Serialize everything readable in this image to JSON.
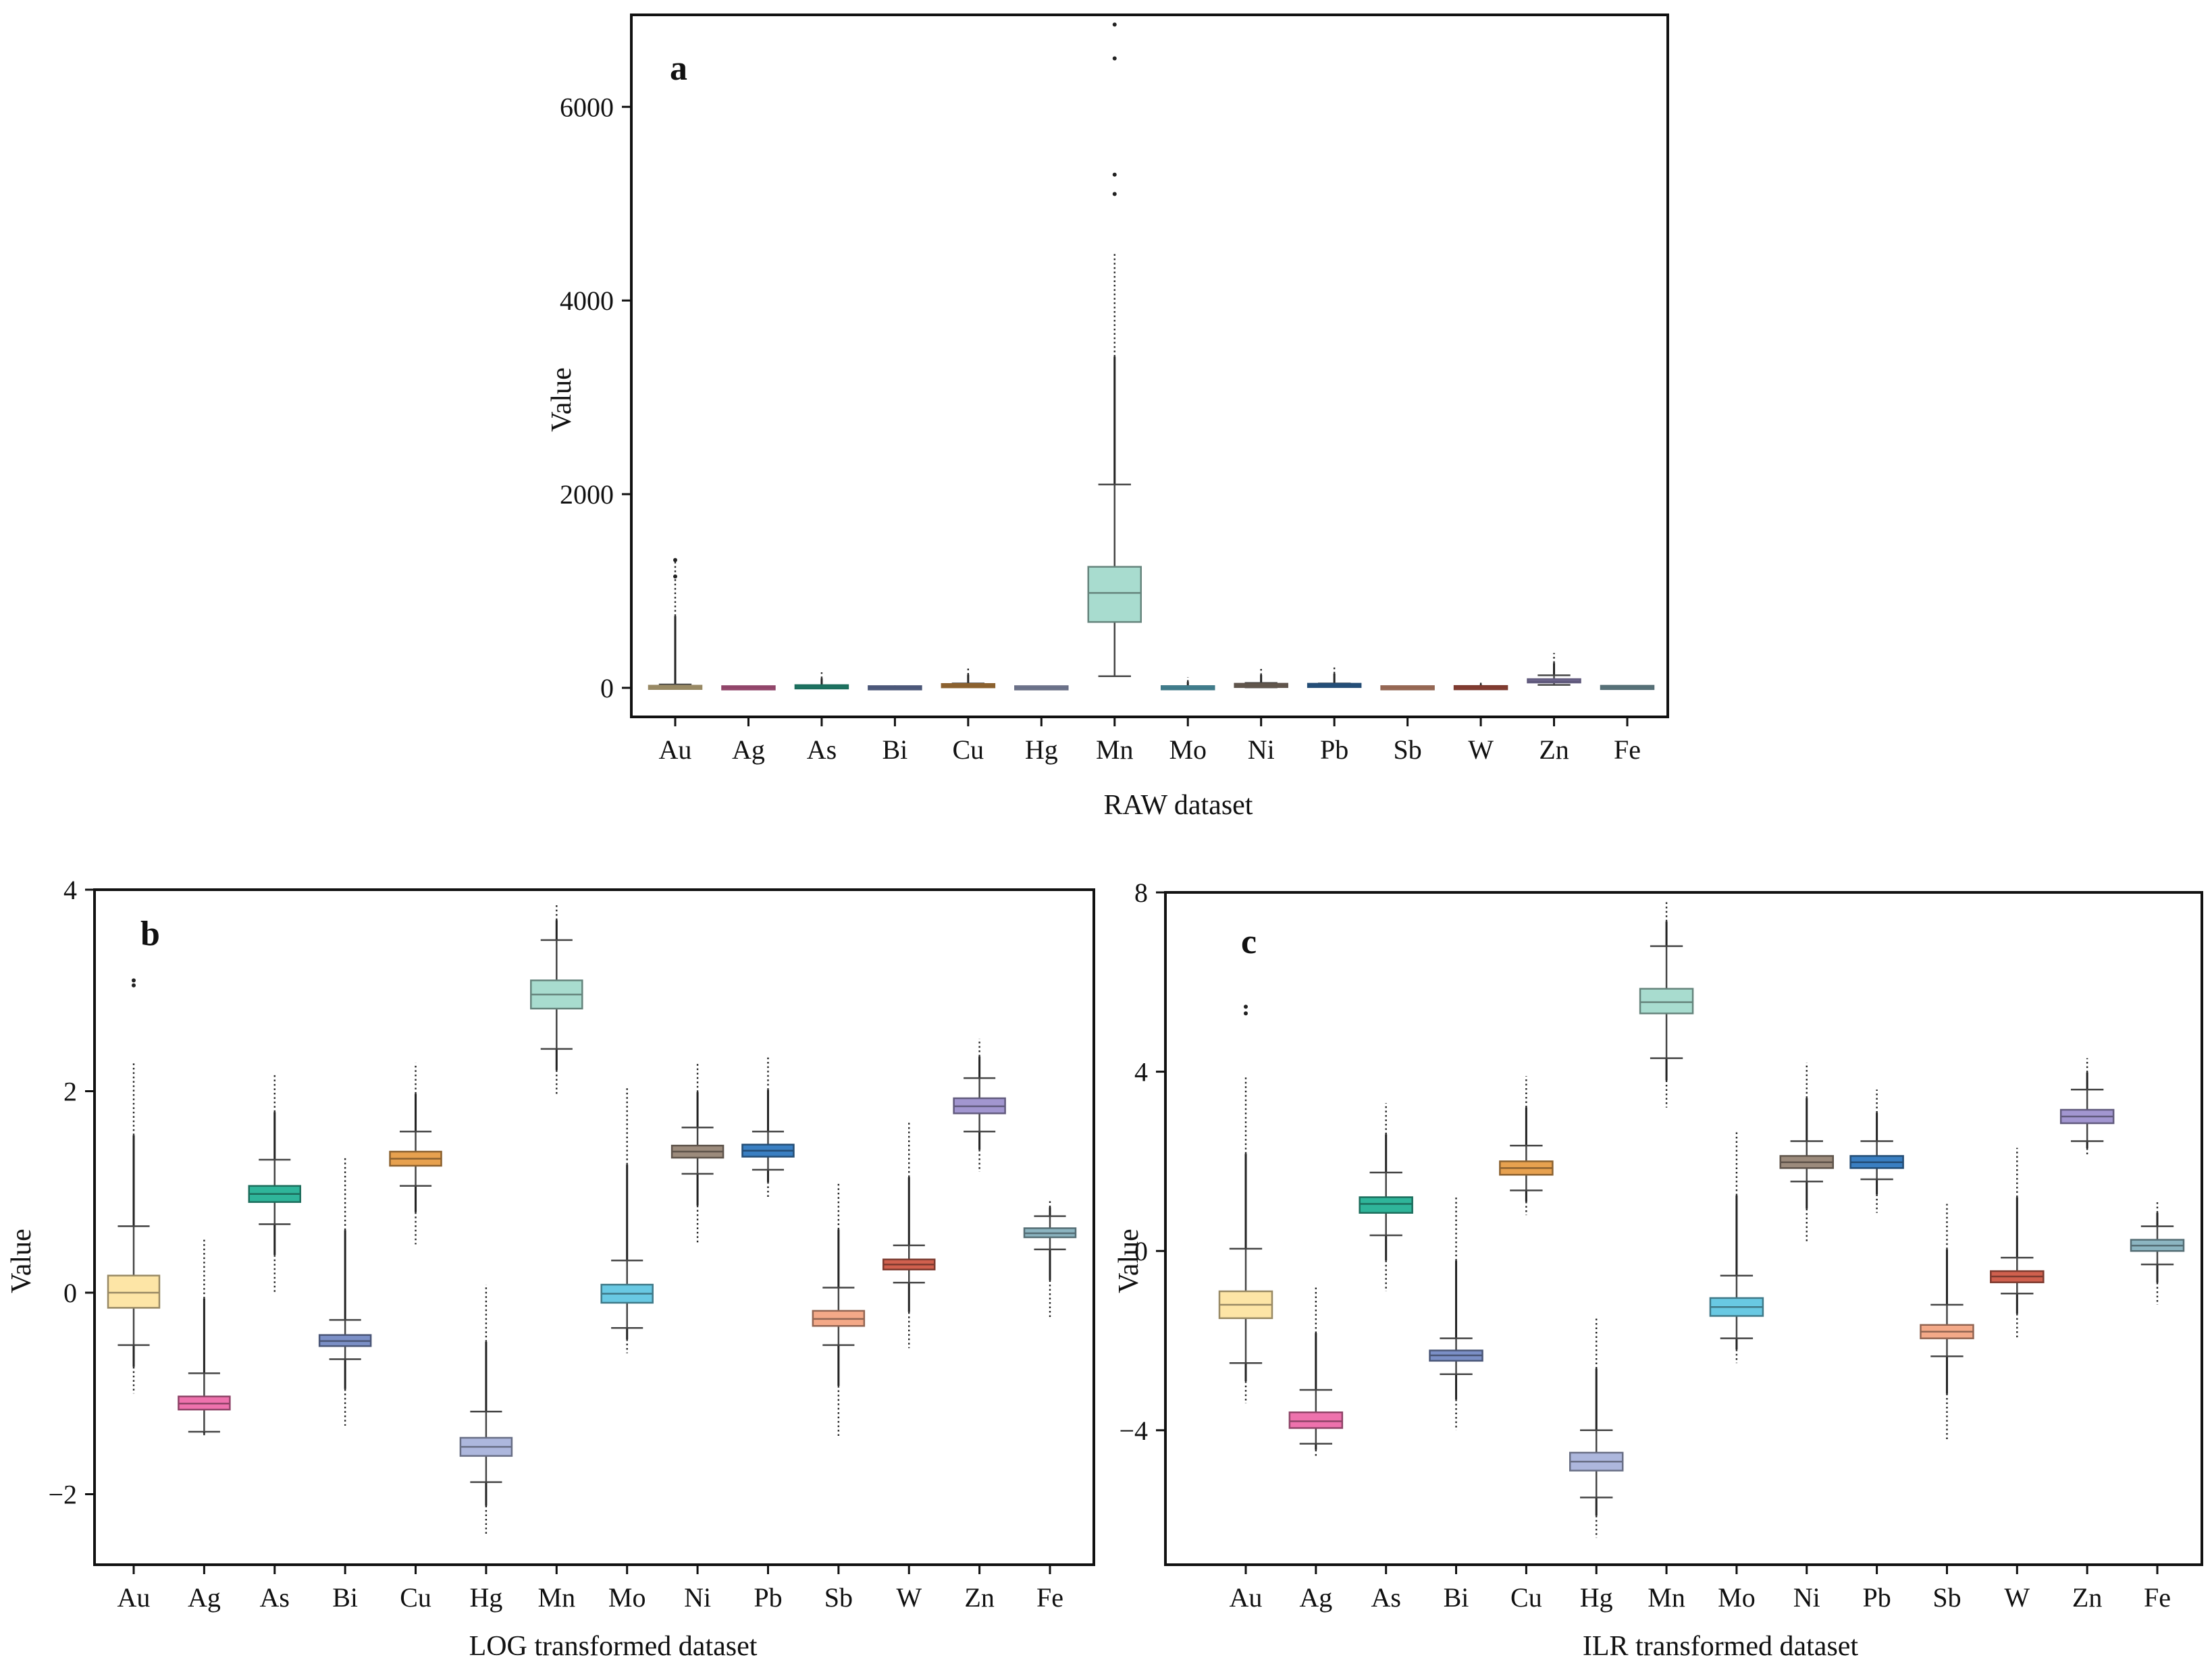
{
  "chart_data": [
    {
      "panel_label": "a",
      "type": "boxplot",
      "xlabel": "RAW dataset",
      "ylabel": "Value",
      "ylim": [
        -300,
        6950
      ],
      "yticks": [
        0,
        2000,
        4000,
        6000
      ],
      "categories": [
        "Au",
        "Ag",
        "As",
        "Bi",
        "Cu",
        "Hg",
        "Mn",
        "Mo",
        "Ni",
        "Pb",
        "Sb",
        "W",
        "Zn",
        "Fe"
      ],
      "boxes": [
        {
          "q1": 2,
          "median": 5,
          "q3": 8,
          "whislo": 0,
          "whishi": 35,
          "outlier_max": 1320,
          "extra_outliers": [
            1150,
            1320
          ]
        },
        {
          "q1": 0.1,
          "median": 0.2,
          "q3": 0.3,
          "whislo": 0,
          "whishi": 1,
          "outlier_max": 5,
          "extra_outliers": []
        },
        {
          "q1": 8,
          "median": 10,
          "q3": 13,
          "whislo": 2,
          "whishi": 25,
          "outlier_max": 160,
          "extra_outliers": []
        },
        {
          "q1": 0.3,
          "median": 0.4,
          "q3": 0.5,
          "whislo": 0.1,
          "whishi": 1,
          "outlier_max": 25,
          "extra_outliers": []
        },
        {
          "q1": 18,
          "median": 22,
          "q3": 27,
          "whislo": 5,
          "whishi": 45,
          "outlier_max": 210,
          "extra_outliers": []
        },
        {
          "q1": 0.02,
          "median": 0.03,
          "q3": 0.04,
          "whislo": 0.01,
          "whishi": 0.06,
          "outlier_max": 1,
          "extra_outliers": []
        },
        {
          "q1": 680,
          "median": 980,
          "q3": 1250,
          "whislo": 120,
          "whishi": 2100,
          "outlier_max": 4500,
          "extra_outliers": [
            5100,
            5300,
            6500,
            6850
          ]
        },
        {
          "q1": 0.6,
          "median": 0.9,
          "q3": 1.3,
          "whislo": 0.2,
          "whishi": 2.5,
          "outlier_max": 110,
          "extra_outliers": []
        },
        {
          "q1": 18,
          "median": 25,
          "q3": 32,
          "whislo": 5,
          "whishi": 50,
          "outlier_max": 200,
          "extra_outliers": []
        },
        {
          "q1": 20,
          "median": 25,
          "q3": 30,
          "whislo": 10,
          "whishi": 45,
          "outlier_max": 230,
          "extra_outliers": []
        },
        {
          "q1": 0.4,
          "median": 0.6,
          "q3": 0.8,
          "whislo": 0.1,
          "whishi": 1.5,
          "outlier_max": 15,
          "extra_outliers": []
        },
        {
          "q1": 1.5,
          "median": 2,
          "q3": 2.5,
          "whislo": 0.5,
          "whishi": 4,
          "outlier_max": 60,
          "extra_outliers": []
        },
        {
          "q1": 60,
          "median": 70,
          "q3": 85,
          "whislo": 30,
          "whishi": 130,
          "outlier_max": 360,
          "extra_outliers": []
        },
        {
          "q1": 3.5,
          "median": 4,
          "q3": 4.5,
          "whislo": 2,
          "whishi": 6,
          "outlier_max": 9,
          "extra_outliers": []
        }
      ],
      "colors": [
        "#fde5a6",
        "#ee72ad",
        "#2fb59a",
        "#7b8fc6",
        "#e7a14f",
        "#adb7dd",
        "#a8dccf",
        "#69c9e3",
        "#9c8b7c",
        "#3a7fc2",
        "#f4a988",
        "#d0604e",
        "#a296d0",
        "#8cb5c1"
      ],
      "colors_note_raw": "Only Mn box visible in panel a (#a8dccf); others collapsed near zero"
    },
    {
      "panel_label": "b",
      "type": "boxplot",
      "xlabel": "LOG transformed dataset",
      "ylabel": "Value",
      "ylim": [
        -2.7,
        4.0
      ],
      "yticks": [
        -2,
        0,
        2,
        4
      ],
      "categories": [
        "Au",
        "Ag",
        "As",
        "Bi",
        "Cu",
        "Hg",
        "Mn",
        "Mo",
        "Ni",
        "Pb",
        "Sb",
        "W",
        "Zn",
        "Fe"
      ],
      "boxes": [
        {
          "q1": -0.15,
          "median": 0.0,
          "q3": 0.17,
          "whislo": -0.52,
          "whishi": 0.66,
          "outlier_min": -1.0,
          "outlier_max": 2.3,
          "extra_outliers": [
            3.05,
            3.1
          ]
        },
        {
          "q1": -1.16,
          "median": -1.1,
          "q3": -1.03,
          "whislo": -1.38,
          "whishi": -0.8,
          "outlier_min": -1.42,
          "outlier_max": 0.55,
          "extra_outliers": []
        },
        {
          "q1": 0.9,
          "median": 0.98,
          "q3": 1.06,
          "whislo": 0.68,
          "whishi": 1.32,
          "outlier_min": 0.0,
          "outlier_max": 2.18,
          "extra_outliers": []
        },
        {
          "q1": -0.53,
          "median": -0.48,
          "q3": -0.42,
          "whislo": -0.66,
          "whishi": -0.27,
          "outlier_min": -1.32,
          "outlier_max": 1.35,
          "extra_outliers": []
        },
        {
          "q1": 1.26,
          "median": 1.33,
          "q3": 1.4,
          "whislo": 1.06,
          "whishi": 1.6,
          "outlier_min": 0.48,
          "outlier_max": 2.28,
          "extra_outliers": []
        },
        {
          "q1": -1.62,
          "median": -1.53,
          "q3": -1.44,
          "whislo": -1.88,
          "whishi": -1.18,
          "outlier_min": -2.4,
          "outlier_max": 0.08,
          "extra_outliers": []
        },
        {
          "q1": 2.82,
          "median": 2.96,
          "q3": 3.1,
          "whislo": 2.42,
          "whishi": 3.5,
          "outlier_min": 1.95,
          "outlier_max": 3.86,
          "extra_outliers": []
        },
        {
          "q1": -0.1,
          "median": -0.01,
          "q3": 0.08,
          "whislo": -0.35,
          "whishi": 0.32,
          "outlier_min": -0.6,
          "outlier_max": 2.05,
          "extra_outliers": []
        },
        {
          "q1": 1.34,
          "median": 1.4,
          "q3": 1.46,
          "whislo": 1.18,
          "whishi": 1.64,
          "outlier_min": 0.48,
          "outlier_max": 2.28,
          "extra_outliers": []
        },
        {
          "q1": 1.35,
          "median": 1.41,
          "q3": 1.47,
          "whislo": 1.22,
          "whishi": 1.6,
          "outlier_min": 0.95,
          "outlier_max": 2.35,
          "extra_outliers": []
        },
        {
          "q1": -0.33,
          "median": -0.26,
          "q3": -0.18,
          "whislo": -0.52,
          "whishi": 0.05,
          "outlier_min": -1.42,
          "outlier_max": 1.1,
          "extra_outliers": []
        },
        {
          "q1": 0.23,
          "median": 0.28,
          "q3": 0.33,
          "whislo": 0.1,
          "whishi": 0.47,
          "outlier_min": -0.55,
          "outlier_max": 1.7,
          "extra_outliers": []
        },
        {
          "q1": 1.78,
          "median": 1.85,
          "q3": 1.93,
          "whislo": 1.6,
          "whishi": 2.13,
          "outlier_min": 1.2,
          "outlier_max": 2.52,
          "extra_outliers": []
        },
        {
          "q1": 0.55,
          "median": 0.59,
          "q3": 0.64,
          "whislo": 0.43,
          "whishi": 0.76,
          "outlier_min": -0.25,
          "outlier_max": 0.92,
          "extra_outliers": []
        }
      ],
      "colors": [
        "#fde5a6",
        "#ee72ad",
        "#2fb59a",
        "#7b8fc6",
        "#e7a14f",
        "#adb7dd",
        "#a8dccf",
        "#69c9e3",
        "#9c8b7c",
        "#3a7fc2",
        "#f4a988",
        "#d0604e",
        "#a296d0",
        "#8cb5c1"
      ]
    },
    {
      "panel_label": "c",
      "type": "boxplot",
      "xlabel": "ILR transformed dataset",
      "ylabel": "Value",
      "ylim": [
        -7.0,
        8.0
      ],
      "yticks": [
        -4,
        0,
        4,
        8
      ],
      "categories": [
        "Au",
        "Ag",
        "As",
        "Bi",
        "Cu",
        "Hg",
        "Mn",
        "Mo",
        "Ni",
        "Pb",
        "Sb",
        "W",
        "Zn",
        "Fe"
      ],
      "boxes": [
        {
          "q1": -1.5,
          "median": -1.2,
          "q3": -0.9,
          "whislo": -2.5,
          "whishi": 0.05,
          "outlier_min": -3.4,
          "outlier_max": 3.9,
          "extra_outliers": [
            5.3,
            5.45
          ]
        },
        {
          "q1": -3.95,
          "median": -3.8,
          "q3": -3.6,
          "whislo": -4.3,
          "whishi": -3.1,
          "outlier_min": -4.6,
          "outlier_max": -0.8,
          "extra_outliers": []
        },
        {
          "q1": 0.85,
          "median": 1.05,
          "q3": 1.2,
          "whislo": 0.35,
          "whishi": 1.75,
          "outlier_min": -0.9,
          "outlier_max": 3.3,
          "extra_outliers": []
        },
        {
          "q1": -2.45,
          "median": -2.33,
          "q3": -2.22,
          "whislo": -2.75,
          "whishi": -1.95,
          "outlier_min": -4.0,
          "outlier_max": 1.2,
          "extra_outliers": []
        },
        {
          "q1": 1.7,
          "median": 1.85,
          "q3": 2.0,
          "whislo": 1.35,
          "whishi": 2.35,
          "outlier_min": 0.8,
          "outlier_max": 3.9,
          "extra_outliers": []
        },
        {
          "q1": -4.9,
          "median": -4.7,
          "q3": -4.5,
          "whislo": -5.5,
          "whishi": -4.0,
          "outlier_min": -6.4,
          "outlier_max": -1.5,
          "extra_outliers": []
        },
        {
          "q1": 5.3,
          "median": 5.55,
          "q3": 5.85,
          "whislo": 4.3,
          "whishi": 6.8,
          "outlier_min": 3.2,
          "outlier_max": 7.8,
          "extra_outliers": []
        },
        {
          "q1": -1.45,
          "median": -1.25,
          "q3": -1.05,
          "whislo": -1.95,
          "whishi": -0.55,
          "outlier_min": -2.5,
          "outlier_max": 2.7,
          "extra_outliers": []
        },
        {
          "q1": 1.85,
          "median": 1.98,
          "q3": 2.12,
          "whislo": 1.55,
          "whishi": 2.45,
          "outlier_min": 0.2,
          "outlier_max": 4.2,
          "extra_outliers": []
        },
        {
          "q1": 1.85,
          "median": 1.98,
          "q3": 2.12,
          "whislo": 1.6,
          "whishi": 2.45,
          "outlier_min": 0.85,
          "outlier_max": 3.6,
          "extra_outliers": []
        },
        {
          "q1": -1.95,
          "median": -1.8,
          "q3": -1.65,
          "whislo": -2.35,
          "whishi": -1.2,
          "outlier_min": -4.2,
          "outlier_max": 1.05,
          "extra_outliers": []
        },
        {
          "q1": -0.7,
          "median": -0.57,
          "q3": -0.45,
          "whislo": -0.95,
          "whishi": -0.15,
          "outlier_min": -1.95,
          "outlier_max": 2.3,
          "extra_outliers": []
        },
        {
          "q1": 2.85,
          "median": 3.0,
          "q3": 3.15,
          "whislo": 2.45,
          "whishi": 3.6,
          "outlier_min": 2.1,
          "outlier_max": 4.3,
          "extra_outliers": []
        },
        {
          "q1": 0.0,
          "median": 0.12,
          "q3": 0.25,
          "whislo": -0.3,
          "whishi": 0.55,
          "outlier_min": -1.2,
          "outlier_max": 1.1,
          "extra_outliers": []
        }
      ],
      "colors": [
        "#fde5a6",
        "#ee72ad",
        "#2fb59a",
        "#7b8fc6",
        "#e7a14f",
        "#adb7dd",
        "#a8dccf",
        "#69c9e3",
        "#9c8b7c",
        "#3a7fc2",
        "#f4a988",
        "#d0604e",
        "#a296d0",
        "#8cb5c1"
      ]
    }
  ]
}
